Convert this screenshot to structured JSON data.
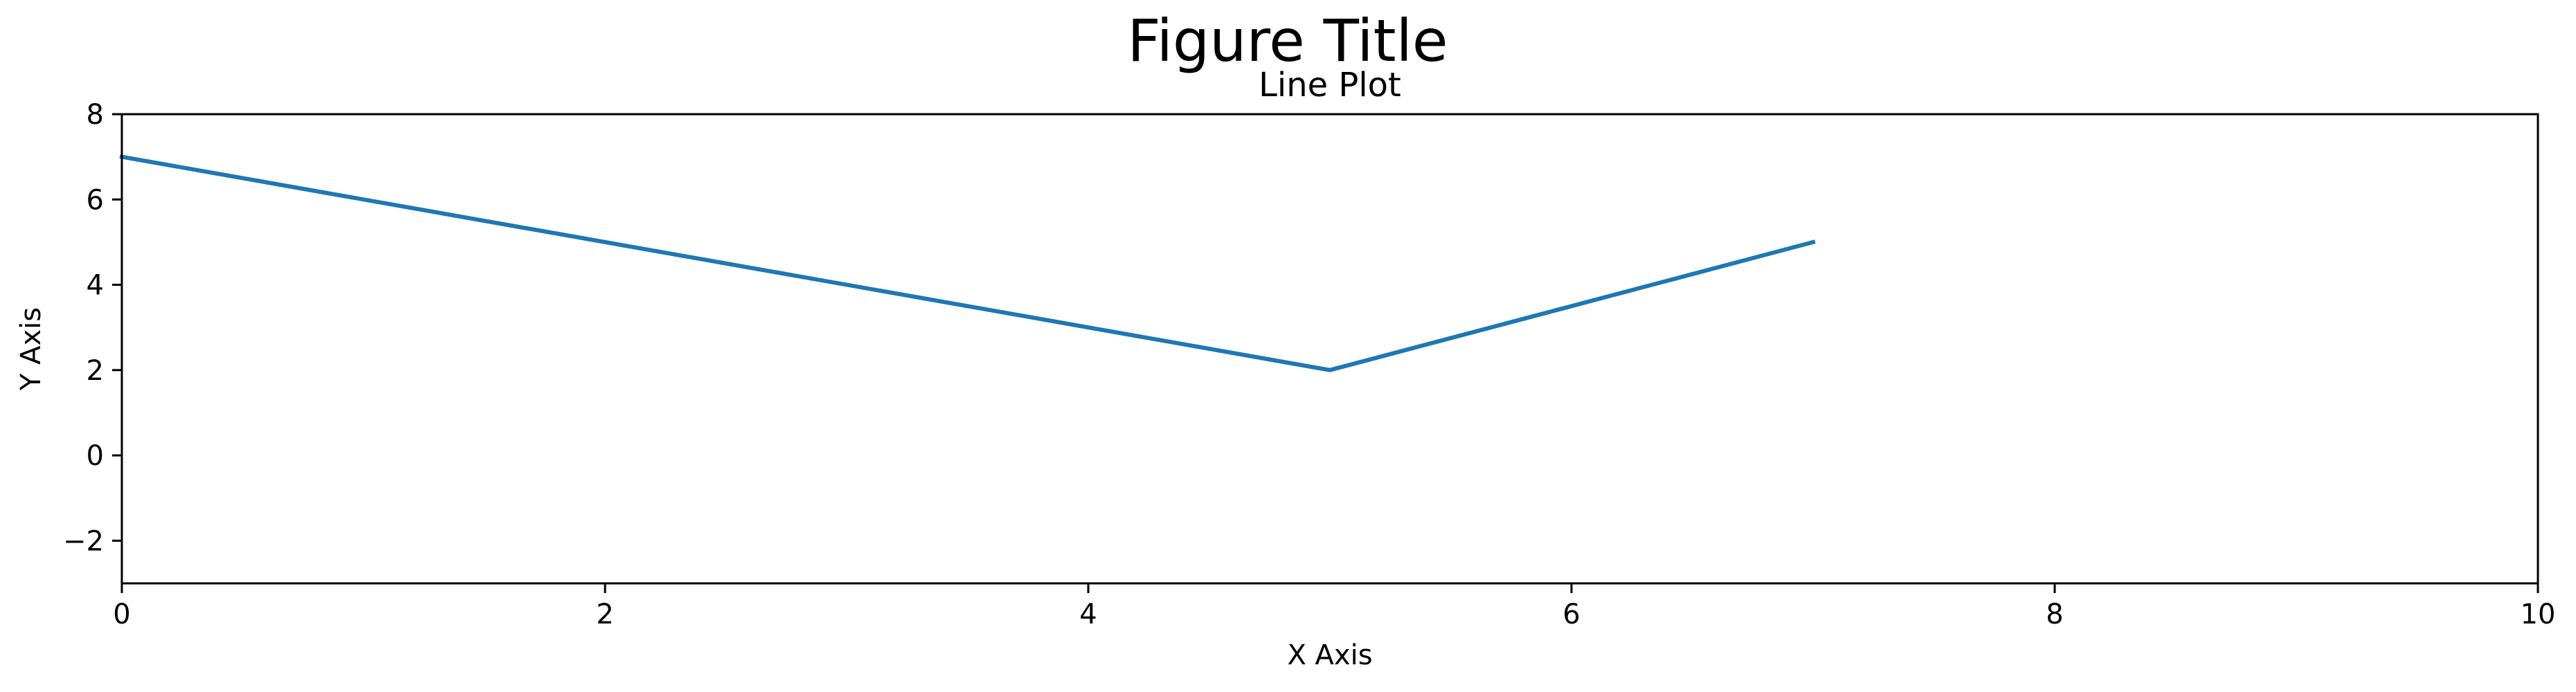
{
  "figure": {
    "title": "Figure Title"
  },
  "chart_data": {
    "type": "line",
    "title": "Line Plot",
    "xlabel": "X Axis",
    "ylabel": "Y Axis",
    "xlim": [
      0,
      10
    ],
    "ylim": [
      -3,
      8
    ],
    "xticks": [
      0,
      2,
      4,
      6,
      8,
      10
    ],
    "yticks": [
      -2,
      0,
      2,
      4,
      6,
      8
    ],
    "xtick_labels": [
      "0",
      "2",
      "4",
      "6",
      "8",
      "10"
    ],
    "ytick_labels": [
      "−2",
      "0",
      "2",
      "4",
      "6",
      "8"
    ],
    "grid": false,
    "legend": "none",
    "series": [
      {
        "x": [
          0,
          5,
          7
        ],
        "y": [
          7,
          2,
          5
        ],
        "color": "#1f77b4"
      }
    ]
  }
}
